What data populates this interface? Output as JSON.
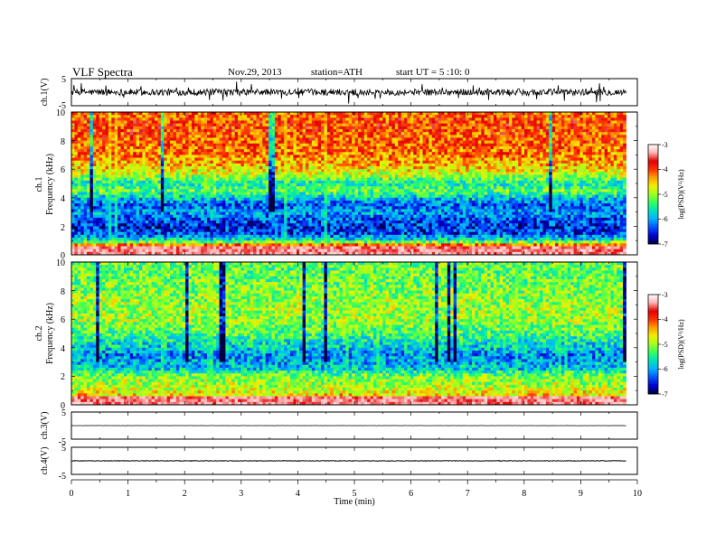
{
  "header": {
    "title": "VLF  Spectra",
    "date": "Nov.29, 2013",
    "station": "station=ATH",
    "start": "start  UT  =   5  :10: 0"
  },
  "chart_data": [
    {
      "type": "line",
      "panel": "ch1-waveform",
      "ylabel": "ch.1(V)",
      "ylim": [
        -5,
        5
      ],
      "yticks": [
        "5",
        "-5"
      ],
      "xlim": [
        0,
        10
      ],
      "data_extent_min": 9.8,
      "baseline": 0,
      "amplitude": 2.2,
      "color": "#000000"
    },
    {
      "type": "heatmap",
      "panel": "ch1-spectrogram",
      "ylabel": "Frequency  (kHz)",
      "channel_label": "ch.1",
      "ylim": [
        0,
        10
      ],
      "yticks": [
        "0",
        "2",
        "4",
        "6",
        "8",
        "10"
      ],
      "xlim": [
        0,
        10
      ],
      "data_extent_min": 9.8,
      "colorbar": {
        "label": "log(PSD)(V²/Hz)",
        "range": [
          -7,
          -3
        ],
        "ticks": [
          "-3",
          "-4",
          "-5",
          "-6",
          "-7"
        ]
      },
      "profile_logpsd": [
        [
          0,
          -3.6
        ],
        [
          0.5,
          -3.3
        ],
        [
          1,
          -5.6
        ],
        [
          1.5,
          -6.4
        ],
        [
          2,
          -6.5
        ],
        [
          2.5,
          -6.3
        ],
        [
          3,
          -6.0
        ],
        [
          3.5,
          -6.3
        ],
        [
          4,
          -5.8
        ],
        [
          4.5,
          -5.2
        ],
        [
          5,
          -5.6
        ],
        [
          5.5,
          -5.0
        ],
        [
          6,
          -4.6
        ],
        [
          7,
          -4.2
        ],
        [
          8,
          -4.1
        ],
        [
          9,
          -4.0
        ],
        [
          10,
          -4.1
        ]
      ]
    },
    {
      "type": "heatmap",
      "panel": "ch2-spectrogram",
      "ylabel": "Frequency  (kHz)",
      "channel_label": "ch.2",
      "ylim": [
        0,
        10
      ],
      "yticks": [
        "0",
        "2",
        "4",
        "6",
        "8",
        "10"
      ],
      "xlim": [
        0,
        10
      ],
      "data_extent_min": 9.8,
      "colorbar": {
        "label": "log(PSD)(V²/Hz)",
        "range": [
          -7,
          -3
        ],
        "ticks": [
          "-3",
          "-4",
          "-5",
          "-6",
          "-7"
        ]
      },
      "profile_logpsd": [
        [
          0,
          -4.2
        ],
        [
          0.5,
          -4.4
        ],
        [
          1,
          -4.8
        ],
        [
          1.5,
          -5.0
        ],
        [
          2,
          -5.1
        ],
        [
          2.5,
          -5.8
        ],
        [
          3,
          -6.0
        ],
        [
          3.5,
          -6.1
        ],
        [
          4,
          -5.8
        ],
        [
          4.5,
          -5.6
        ],
        [
          5,
          -5.3
        ],
        [
          6,
          -5.0
        ],
        [
          7,
          -5.0
        ],
        [
          8,
          -5.1
        ],
        [
          9,
          -5.2
        ],
        [
          10,
          -5.2
        ]
      ]
    },
    {
      "type": "line",
      "panel": "ch3-waveform",
      "ylabel": "ch.3(V)",
      "ylim": [
        -5,
        5
      ],
      "yticks": [
        "5",
        "-5"
      ],
      "xlim": [
        0,
        10
      ],
      "data_extent_min": 9.8,
      "baseline": 0,
      "amplitude": 0.08,
      "color": "#000000"
    },
    {
      "type": "line",
      "panel": "ch4-waveform",
      "ylabel": "ch.4(V)",
      "ylim": [
        -5,
        5
      ],
      "yticks": [
        "5",
        "-5"
      ],
      "xlim": [
        0,
        10
      ],
      "data_extent_min": 9.8,
      "baseline": 0,
      "amplitude": 0.2,
      "color": "#000000",
      "xlabel": "Time  (min)",
      "xticks": [
        "0",
        "1",
        "2",
        "3",
        "4",
        "5",
        "6",
        "7",
        "8",
        "9",
        "10"
      ]
    }
  ],
  "colormap": [
    "#000040",
    "#0000d0",
    "#0050ff",
    "#00b0ff",
    "#00e0c0",
    "#30ff60",
    "#a0ff20",
    "#f0f000",
    "#ffa000",
    "#ff3000",
    "#e00000",
    "#ffb0b0",
    "#ffffff"
  ]
}
